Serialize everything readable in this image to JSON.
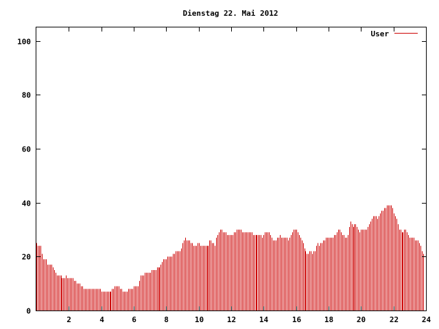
{
  "chart_data": {
    "type": "bar",
    "title": "Dienstag 22. Mai 2012",
    "xlabel": "",
    "ylabel": "",
    "xlim": [
      0,
      24
    ],
    "ylim": [
      0,
      105
    ],
    "x_ticks": [
      2,
      4,
      6,
      8,
      10,
      12,
      14,
      16,
      18,
      20,
      22,
      24
    ],
    "y_ticks": [
      0,
      20,
      40,
      60,
      80,
      100
    ],
    "grid": false,
    "legend": "top-right",
    "series": [
      {
        "name": "User",
        "color": "#cc0000",
        "sample_interval_minutes": 5,
        "values": [
          25,
          24,
          24,
          24,
          21,
          19,
          19,
          19,
          17,
          17,
          17,
          17,
          16,
          15,
          14,
          13,
          13,
          13,
          13,
          12,
          12,
          12,
          13,
          12,
          12,
          12,
          12,
          12,
          11,
          11,
          10,
          10,
          10,
          9,
          9,
          8,
          8,
          8,
          8,
          8,
          8,
          8,
          8,
          8,
          8,
          8,
          8,
          8,
          7,
          7,
          7,
          7,
          7,
          7,
          7,
          7,
          8,
          8,
          9,
          9,
          9,
          9,
          8,
          8,
          7,
          7,
          7,
          7,
          8,
          8,
          8,
          8,
          9,
          9,
          9,
          9,
          11,
          13,
          13,
          13,
          14,
          14,
          14,
          14,
          14,
          15,
          15,
          15,
          15,
          16,
          16,
          16,
          17,
          18,
          19,
          19,
          19,
          20,
          20,
          20,
          20,
          21,
          21,
          22,
          22,
          22,
          22,
          23,
          25,
          26,
          27,
          26,
          26,
          26,
          25,
          25,
          24,
          24,
          24,
          25,
          25,
          24,
          24,
          24,
          24,
          24,
          24,
          24,
          26,
          26,
          25,
          25,
          24,
          27,
          28,
          29,
          30,
          30,
          29,
          29,
          29,
          28,
          28,
          28,
          28,
          28,
          29,
          29,
          30,
          30,
          30,
          30,
          29,
          29,
          29,
          29,
          29,
          29,
          29,
          29,
          28,
          28,
          28,
          28,
          28,
          28,
          28,
          27,
          28,
          29,
          29,
          29,
          29,
          28,
          27,
          26,
          26,
          26,
          27,
          27,
          28,
          27,
          27,
          27,
          27,
          27,
          26,
          27,
          28,
          29,
          30,
          30,
          30,
          29,
          28,
          27,
          26,
          25,
          23,
          22,
          21,
          21,
          22,
          22,
          21,
          22,
          22,
          24,
          25,
          24,
          25,
          25,
          26,
          26,
          27,
          27,
          27,
          27,
          27,
          27,
          28,
          28,
          29,
          30,
          30,
          29,
          28,
          28,
          27,
          27,
          28,
          31,
          33,
          32,
          31,
          32,
          32,
          31,
          30,
          29,
          30,
          30,
          30,
          30,
          30,
          31,
          32,
          33,
          34,
          35,
          35,
          35,
          34,
          35,
          36,
          37,
          37,
          38,
          38,
          39,
          39,
          39,
          39,
          38,
          36,
          35,
          34,
          32,
          30,
          30,
          29,
          29,
          30,
          30,
          29,
          28,
          27,
          27,
          27,
          27,
          26,
          26,
          26,
          25,
          24,
          22,
          21
        ]
      }
    ]
  }
}
